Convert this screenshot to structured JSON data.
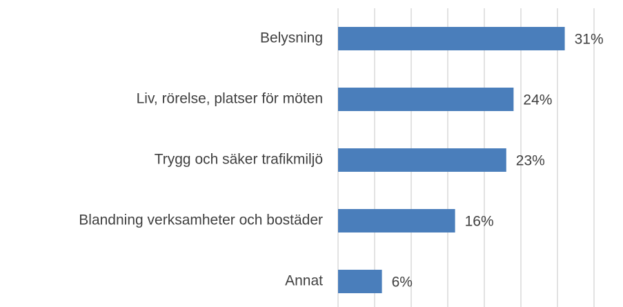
{
  "chart_data": {
    "type": "bar",
    "orientation": "horizontal",
    "categories": [
      "Belysning",
      "Liv, rörelse, platser för möten",
      "Trygg och säker trafikmiljö",
      "Blandning verksamheter och bostäder",
      "Annat"
    ],
    "values": [
      31,
      24,
      23,
      16,
      6
    ],
    "value_labels": [
      "31%",
      "24%",
      "23%",
      "16%",
      "6%"
    ],
    "color": "#4a7ebb",
    "xlim": [
      0,
      35
    ],
    "xticks": [
      0,
      5,
      10,
      15,
      20,
      25,
      30,
      35
    ],
    "grid": true
  }
}
